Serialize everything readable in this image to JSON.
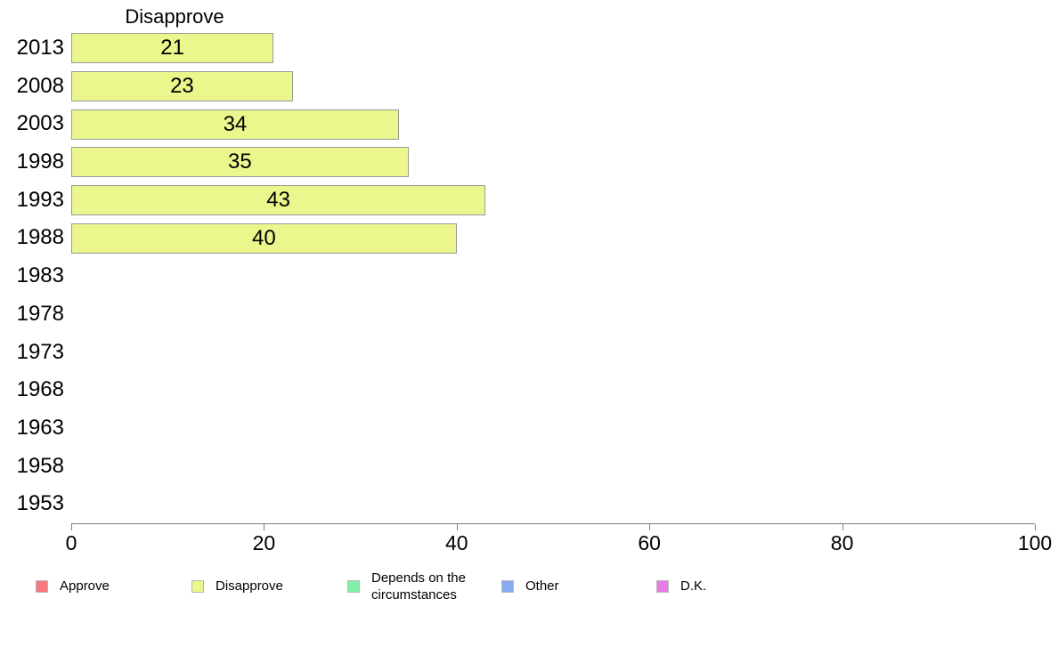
{
  "chart_data": {
    "type": "bar",
    "orientation": "horizontal",
    "title": "Disapprove",
    "categories": [
      "2013",
      "2008",
      "2003",
      "1998",
      "1993",
      "1988",
      "1983",
      "1978",
      "1973",
      "1968",
      "1963",
      "1958",
      "1953"
    ],
    "series": [
      {
        "name": "Disapprove",
        "color": "#ebf78d",
        "values": [
          21,
          23,
          34,
          35,
          43,
          40,
          null,
          null,
          null,
          null,
          null,
          null,
          null
        ]
      }
    ],
    "bar_value_labels": [
      "21",
      "23",
      "34",
      "35",
      "43",
      "40",
      "",
      "",
      "",
      "",
      "",
      "",
      ""
    ],
    "xlabel": "",
    "ylabel": "",
    "xlim": [
      0,
      100
    ],
    "x_ticks": [
      0,
      20,
      40,
      60,
      80,
      100
    ],
    "grid": false,
    "legend_position": "bottom",
    "legend": [
      {
        "label": "Approve",
        "color": "#f5797d"
      },
      {
        "label": "Disapprove",
        "color": "#ebf78d"
      },
      {
        "label": "Depends on the circumstances",
        "color": "#80f2a8"
      },
      {
        "label": "Other",
        "color": "#86abf2"
      },
      {
        "label": "D.K.",
        "color": "#e67ae6"
      }
    ],
    "colors": {
      "bar_fill": "#ebf78d",
      "bar_border": "#999999",
      "axis": "#808080",
      "text": "#000000"
    }
  }
}
